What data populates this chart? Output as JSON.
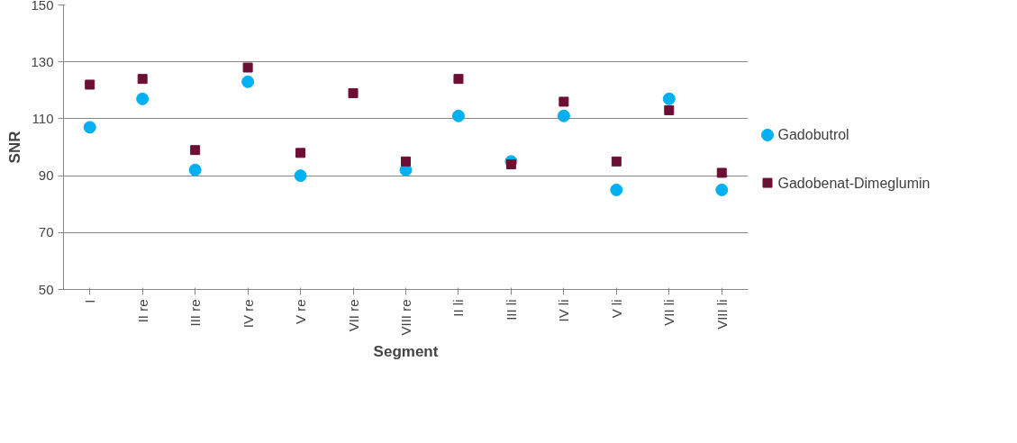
{
  "chart_data": {
    "type": "scatter",
    "xlabel": "Segment",
    "ylabel": "SNR",
    "categories": [
      "I",
      "II re",
      "III re",
      "IV re",
      "V re",
      "VII re",
      "VIII re",
      "II li",
      "III li",
      "IV li",
      "V li",
      "VII li",
      "VIII li"
    ],
    "series": [
      {
        "name": "Gadobutrol",
        "color": "#00b0f0",
        "marker": "circle",
        "values": [
          107,
          117,
          92,
          123,
          90,
          null,
          92,
          111,
          95,
          111,
          85,
          117,
          85
        ]
      },
      {
        "name": "Gadobenat-Dimeglumin",
        "color": "#6d0f35",
        "marker": "square",
        "values": [
          122,
          124,
          99,
          128,
          98,
          119,
          95,
          124,
          94,
          116,
          95,
          113,
          91
        ]
      }
    ],
    "ylim": [
      50,
      150
    ],
    "yticks": [
      50,
      70,
      90,
      110,
      130,
      150
    ],
    "grid": "y",
    "legend": "right"
  }
}
